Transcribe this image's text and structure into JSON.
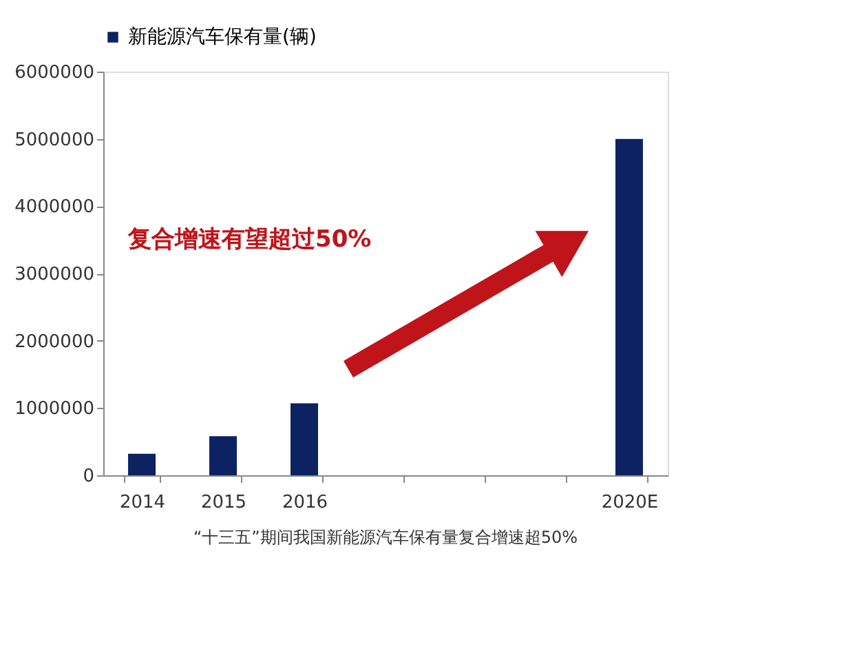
{
  "chart_data": {
    "type": "bar",
    "categories": [
      "2014",
      "2015",
      "2016",
      null,
      null,
      null,
      "2020E"
    ],
    "series": [
      {
        "name": "新能源汽车保有量(辆)",
        "color": "#0d2262",
        "values": [
          320000,
          580000,
          1070000,
          null,
          null,
          null,
          5000000
        ]
      }
    ],
    "ylim": [
      0,
      6000000
    ],
    "yticks": [
      0,
      1000000,
      2000000,
      3000000,
      4000000,
      5000000,
      6000000
    ],
    "grid": false,
    "legend": "top",
    "annotations": [
      "复合增速有望超过50%",
      "“十三五”期间我国新能源汽车保有量复合增速超50%"
    ]
  }
}
